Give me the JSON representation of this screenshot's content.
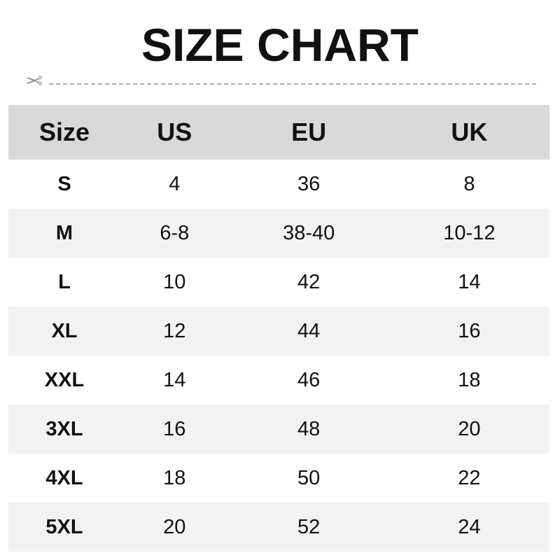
{
  "title": "SIZE CHART",
  "icons": {
    "cut": "scissors-icon"
  },
  "colors": {
    "header_bg": "#d9d9d9",
    "alt_row_bg": "#f2f2f2"
  },
  "table": {
    "headers": [
      "Size",
      "US",
      "EU",
      "UK"
    ],
    "rows": [
      [
        "S",
        "4",
        "36",
        "8"
      ],
      [
        "M",
        "6-8",
        "38-40",
        "10-12"
      ],
      [
        "L",
        "10",
        "42",
        "14"
      ],
      [
        "XL",
        "12",
        "44",
        "16"
      ],
      [
        "XXL",
        "14",
        "46",
        "18"
      ],
      [
        "3XL",
        "16",
        "48",
        "20"
      ],
      [
        "4XL",
        "18",
        "50",
        "22"
      ],
      [
        "5XL",
        "20",
        "52",
        "24"
      ]
    ]
  }
}
